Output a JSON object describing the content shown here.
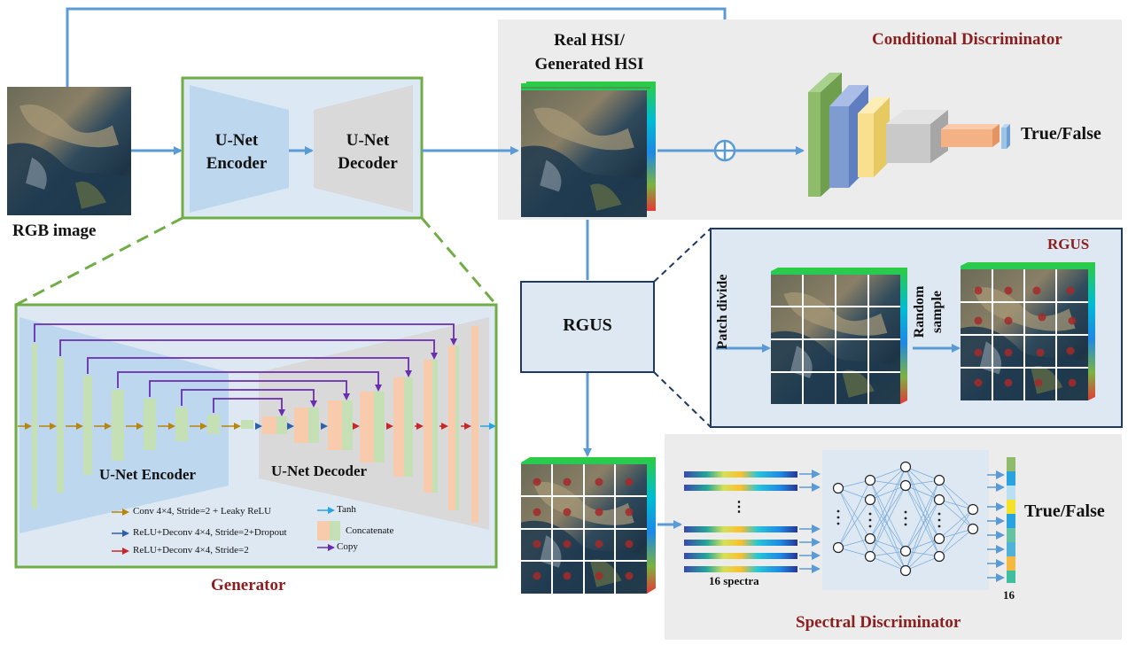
{
  "labels": {
    "rgb_image": "RGB image",
    "encoder_top": "U-Net Encoder",
    "decoder_top": "U-Net Decoder",
    "real_hsi": "Real HSI/ Generated HSI",
    "cond_disc": "Conditional Discriminator",
    "true_false_1": "True/False",
    "rgus_box": "RGUS",
    "rgus_panel_title": "RGUS",
    "patch_divide": "Patch divide",
    "random_sample": "Random sample",
    "encoder_detail": "U-Net Encoder",
    "decoder_detail": "U-Net Decoder",
    "generator": "Generator",
    "spectra_count": "16 spectra",
    "output_count": "16",
    "true_false_2": "True/False",
    "spec_disc": "Spectral Discriminator",
    "dots_spectra": "⋮"
  },
  "legend": [
    {
      "key": "conv",
      "label": "Conv 4×4, Stride=2 + Leaky ReLU",
      "color": "#b8860b"
    },
    {
      "key": "deconv_dropout",
      "label": "ReLU+Deconv 4×4, Stride=2+Dropout",
      "color": "#2e5fa8"
    },
    {
      "key": "deconv",
      "label": "ReLU+Deconv 4×4, Stride=2",
      "color": "#c62828"
    },
    {
      "key": "tanh",
      "label": "Tanh",
      "color": "#29a3e0"
    },
    {
      "key": "concat",
      "label": "Concatenate",
      "color": "#f4c49a"
    },
    {
      "key": "copy",
      "label": "Copy",
      "color": "#6a2db0"
    }
  ],
  "colors": {
    "arrow_blue": "#5b9bd5",
    "green_border": "#70ad47",
    "encoder_fill": "#bdd7ee",
    "decoder_fill": "#d9d9d9",
    "panel_gray": "#ececec",
    "rgus_fill": "#dde8f3",
    "navy": "#1f3864",
    "title_red": "#8b1e1e",
    "encoder_bar": "#c5e0b4",
    "decoder_bar": "#f8cbad",
    "copy_purple": "#6a2db0",
    "cnn_green": "#8fbc6b",
    "cnn_blue": "#7f9cd1",
    "cnn_yellow": "#f8e08e",
    "cnn_gray": "#c9c9c9",
    "cnn_orange": "#f4b183",
    "cnn_smallblue": "#9dc3e6"
  }
}
